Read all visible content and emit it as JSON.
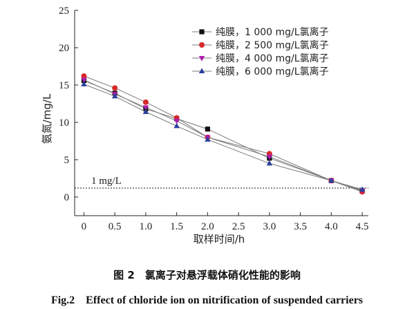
{
  "chart_data": {
    "type": "line",
    "xlabel": "取样时间/h",
    "ylabel": "氨氮/mg/L",
    "x": [
      0,
      0.5,
      1.0,
      1.5,
      2.0,
      3.0,
      4.0,
      4.5
    ],
    "x_tick_labels": [
      "0",
      "0.5",
      "1.0",
      "1.5",
      "2.0",
      "2.5",
      "3.0",
      "3.5",
      "4.0",
      "4.5"
    ],
    "y_tick_labels": [
      "0",
      "5",
      "10",
      "15",
      "20",
      "25"
    ],
    "xlim": [
      -0.15,
      4.6
    ],
    "ylim": [
      -2.5,
      25
    ],
    "legend_position": "top-right",
    "series": [
      {
        "name": "纯膜，1 000 mg/L氯离子",
        "marker": "square",
        "color": "#111111",
        "values": [
          15.6,
          13.9,
          11.8,
          10.5,
          9.1,
          5.2,
          2.2,
          0.8
        ]
      },
      {
        "name": "纯膜，2 500 mg/L氯离子",
        "marker": "circle",
        "color": "#d62a2a",
        "values": [
          16.2,
          14.6,
          12.7,
          10.6,
          8.0,
          5.8,
          2.2,
          0.7
        ]
      },
      {
        "name": "纯膜，4 000 mg/L氯离子",
        "marker": "triangle-down",
        "color": "#b01ab0",
        "values": [
          15.7,
          13.8,
          12.0,
          10.2,
          8.0,
          5.4,
          2.2,
          0.9
        ]
      },
      {
        "name": "纯膜，6 000 mg/L氯离子",
        "marker": "triangle-up",
        "color": "#2a3f9d",
        "values": [
          15.1,
          13.5,
          11.4,
          9.5,
          7.7,
          4.5,
          2.2,
          1.0
        ]
      }
    ],
    "reference_line": {
      "value": 1.2,
      "label": "1 mg/L",
      "style": "dotted",
      "color": "#333333"
    }
  },
  "caption": {
    "cn": "图 2　氯离子对悬浮载体硝化性能的影响",
    "en": "Fig.2　Effect of chloride ion on nitrification of suspended carriers"
  }
}
